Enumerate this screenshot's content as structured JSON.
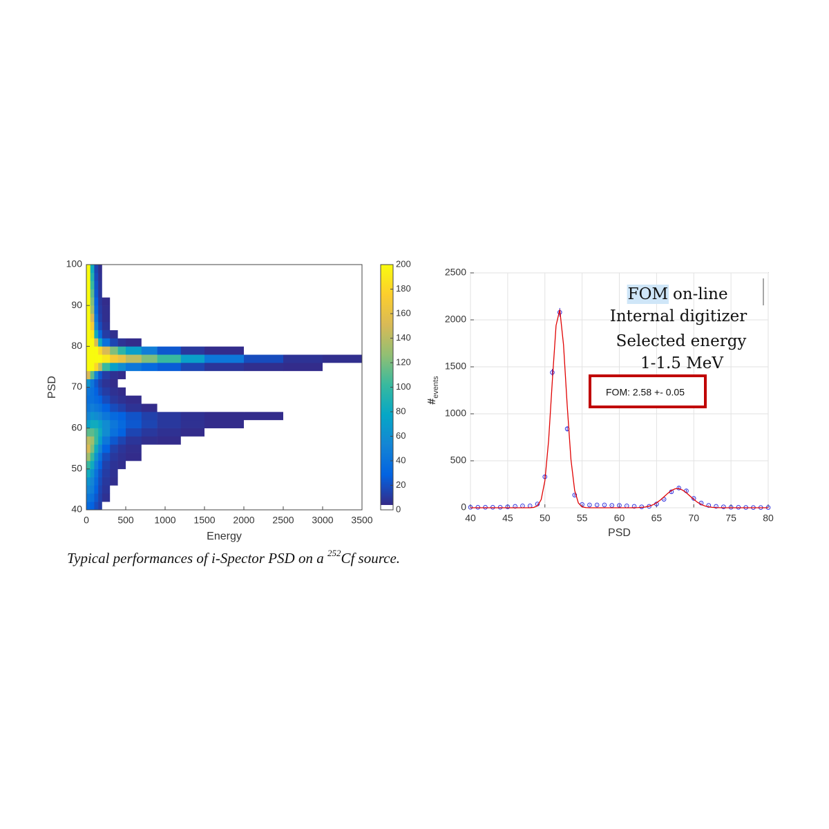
{
  "chart_data": [
    {
      "type": "heatmap",
      "xlabel": "Energy",
      "ylabel": "PSD",
      "xlim": [
        0,
        3500
      ],
      "xticks": [
        0,
        500,
        1000,
        1500,
        2000,
        2500,
        3000,
        3500
      ],
      "ylim": [
        40,
        100
      ],
      "yticks": [
        40,
        50,
        60,
        70,
        80,
        90,
        100
      ],
      "xbins": [
        0,
        50,
        100,
        150,
        200,
        300,
        400,
        500,
        700,
        900,
        1200,
        1500,
        2000,
        2500,
        3000,
        3500
      ],
      "ybins": [
        40,
        42,
        44,
        46,
        48,
        50,
        52,
        54,
        56,
        58,
        60,
        62,
        64,
        66,
        68,
        70,
        72,
        74,
        76,
        78,
        80,
        82,
        84,
        86,
        88,
        90,
        92,
        94,
        96,
        98,
        100
      ],
      "z": [
        [
          30,
          25,
          15,
          8,
          0,
          0,
          0,
          0,
          0,
          0,
          0,
          0,
          0,
          0,
          0
        ],
        [
          40,
          35,
          20,
          10,
          3,
          0,
          0,
          0,
          0,
          0,
          0,
          0,
          0,
          0,
          0
        ],
        [
          50,
          45,
          25,
          12,
          5,
          0,
          0,
          0,
          0,
          0,
          0,
          0,
          0,
          0,
          0
        ],
        [
          60,
          50,
          30,
          15,
          6,
          2,
          0,
          0,
          0,
          0,
          0,
          0,
          0,
          0,
          0
        ],
        [
          80,
          60,
          35,
          18,
          8,
          3,
          0,
          0,
          0,
          0,
          0,
          0,
          0,
          0,
          0
        ],
        [
          100,
          80,
          45,
          25,
          10,
          4,
          2,
          0,
          0,
          0,
          0,
          0,
          0,
          0,
          0
        ],
        [
          130,
          100,
          60,
          35,
          15,
          6,
          3,
          1,
          0,
          0,
          0,
          0,
          0,
          0,
          0
        ],
        [
          150,
          120,
          80,
          50,
          25,
          10,
          5,
          2,
          0,
          0,
          0,
          0,
          0,
          0,
          0
        ],
        [
          140,
          130,
          100,
          70,
          40,
          20,
          12,
          5,
          2,
          1,
          0,
          0,
          0,
          0,
          0
        ],
        [
          110,
          110,
          100,
          80,
          55,
          35,
          25,
          12,
          6,
          3,
          1,
          0,
          0,
          0,
          0
        ],
        [
          70,
          80,
          80,
          70,
          55,
          40,
          30,
          20,
          12,
          6,
          3,
          1,
          0,
          0,
          0
        ],
        [
          50,
          60,
          55,
          50,
          40,
          30,
          25,
          18,
          10,
          6,
          3,
          1,
          1,
          0,
          0
        ],
        [
          40,
          45,
          40,
          35,
          25,
          15,
          10,
          4,
          1,
          0,
          0,
          0,
          0,
          0,
          0
        ],
        [
          35,
          35,
          30,
          25,
          15,
          6,
          3,
          1,
          0,
          0,
          0,
          0,
          0,
          0,
          0
        ],
        [
          40,
          35,
          25,
          15,
          8,
          3,
          1,
          0,
          0,
          0,
          0,
          0,
          0,
          0,
          0
        ],
        [
          60,
          40,
          20,
          10,
          4,
          1,
          0,
          0,
          0,
          0,
          0,
          0,
          0,
          0,
          0
        ],
        [
          150,
          110,
          50,
          20,
          8,
          3,
          1,
          0,
          0,
          0,
          0,
          0,
          0,
          0,
          0
        ],
        [
          200,
          200,
          180,
          140,
          100,
          70,
          55,
          40,
          30,
          22,
          12,
          5,
          2,
          1,
          0
        ],
        [
          200,
          200,
          200,
          200,
          190,
          170,
          160,
          140,
          120,
          100,
          70,
          40,
          15,
          4,
          2
        ],
        [
          200,
          200,
          200,
          180,
          150,
          120,
          95,
          70,
          45,
          20,
          6,
          1,
          0,
          0,
          0
        ],
        [
          200,
          200,
          150,
          80,
          35,
          12,
          4,
          1,
          0,
          0,
          0,
          0,
          0,
          0,
          0
        ],
        [
          200,
          190,
          80,
          30,
          8,
          2,
          0,
          0,
          0,
          0,
          0,
          0,
          0,
          0,
          0
        ],
        [
          200,
          170,
          50,
          15,
          4,
          0,
          0,
          0,
          0,
          0,
          0,
          0,
          0,
          0,
          0
        ],
        [
          200,
          150,
          40,
          10,
          2,
          0,
          0,
          0,
          0,
          0,
          0,
          0,
          0,
          0,
          0
        ],
        [
          200,
          130,
          30,
          8,
          2,
          0,
          0,
          0,
          0,
          0,
          0,
          0,
          0,
          0,
          0
        ],
        [
          200,
          120,
          25,
          6,
          1,
          0,
          0,
          0,
          0,
          0,
          0,
          0,
          0,
          0,
          0
        ],
        [
          200,
          110,
          20,
          5,
          0,
          0,
          0,
          0,
          0,
          0,
          0,
          0,
          0,
          0,
          0
        ],
        [
          200,
          100,
          18,
          4,
          0,
          0,
          0,
          0,
          0,
          0,
          0,
          0,
          0,
          0,
          0
        ],
        [
          200,
          90,
          15,
          3,
          0,
          0,
          0,
          0,
          0,
          0,
          0,
          0,
          0,
          0,
          0
        ],
        [
          200,
          80,
          12,
          2,
          0,
          0,
          0,
          0,
          0,
          0,
          0,
          0,
          0,
          0,
          0
        ]
      ],
      "colormap": [
        "#352a87",
        "#0363e1",
        "#1485d4",
        "#06a7c6",
        "#38b99e",
        "#92bf73",
        "#d9ba56",
        "#fcce2e",
        "#f9fb0e"
      ],
      "zero_color": "#ffffff",
      "clim": [
        0,
        200
      ],
      "cticks": [
        0,
        20,
        40,
        60,
        80,
        100,
        120,
        140,
        160,
        180,
        200
      ]
    },
    {
      "type": "scatter",
      "xlabel": "PSD",
      "ylabel": "#",
      "ylabel_subscript": "events",
      "xlim": [
        40,
        80
      ],
      "xticks": [
        40,
        45,
        50,
        55,
        60,
        65,
        70,
        75,
        80
      ],
      "ylim": [
        0,
        2500
      ],
      "yticks": [
        0,
        500,
        1000,
        1500,
        2000,
        2500
      ],
      "grid": true,
      "series": [
        {
          "kind": "points",
          "color": "#3333dd",
          "x": [
            40,
            41,
            42,
            43,
            44,
            45,
            46,
            47,
            48,
            49,
            50,
            51,
            52,
            53,
            54,
            55,
            56,
            57,
            58,
            59,
            60,
            61,
            62,
            63,
            64,
            65,
            66,
            67,
            68,
            69,
            70,
            71,
            72,
            73,
            74,
            75,
            76,
            77,
            78,
            79,
            80
          ],
          "values": [
            5,
            5,
            5,
            5,
            5,
            10,
            15,
            20,
            20,
            40,
            330,
            1440,
            2080,
            840,
            135,
            35,
            30,
            30,
            30,
            25,
            25,
            20,
            15,
            10,
            15,
            40,
            90,
            170,
            210,
            180,
            100,
            50,
            25,
            15,
            10,
            5,
            5,
            3,
            2,
            2,
            2
          ],
          "errors": [
            2,
            2,
            2,
            2,
            2,
            3,
            4,
            4,
            4,
            6,
            18,
            38,
            46,
            29,
            12,
            6,
            5,
            5,
            5,
            5,
            5,
            4,
            4,
            3,
            4,
            6,
            9,
            13,
            14,
            13,
            10,
            7,
            5,
            4,
            3,
            2,
            2,
            2,
            1,
            1,
            1
          ]
        },
        {
          "kind": "line",
          "color": "#e00000",
          "x": [
            40,
            47.5,
            48,
            48.5,
            49,
            49.5,
            50,
            50.5,
            51,
            51.5,
            52,
            52.5,
            53,
            53.5,
            54,
            54.5,
            55,
            55.5,
            56,
            61.5,
            62,
            62.5,
            63,
            63.5,
            64,
            64.5,
            65,
            65.5,
            66,
            66.5,
            67,
            67.5,
            68,
            68.5,
            69,
            69.5,
            70,
            70.5,
            71,
            71.5,
            72,
            72.5,
            73,
            73.5,
            74,
            80
          ],
          "values": [
            0,
            0,
            0.5,
            3.5,
            20,
            87,
            287,
            716,
            1353,
            1940,
            2108,
            1737,
            1085,
            514,
            184,
            50,
            10,
            1.6,
            0,
            0,
            0.6,
            1.6,
            3.8,
            8.4,
            17,
            31,
            53,
            82,
            117,
            153,
            184,
            202,
            204,
            188,
            160,
            124,
            89,
            58,
            35,
            19,
            10,
            4.5,
            1.9,
            0.7,
            0,
            0
          ]
        }
      ],
      "annotation": {
        "highlight": "FOM",
        "highlight_rest": "on-line",
        "lines": [
          "Internal digitizer",
          "Selected energy",
          "1-1.5 MeV"
        ],
        "box_text": "FOM: 2.58 +- 0.05"
      }
    }
  ],
  "caption": {
    "before": "Typical performances of i-Spector PSD on a ",
    "sup": "252",
    "after": "Cf source."
  }
}
